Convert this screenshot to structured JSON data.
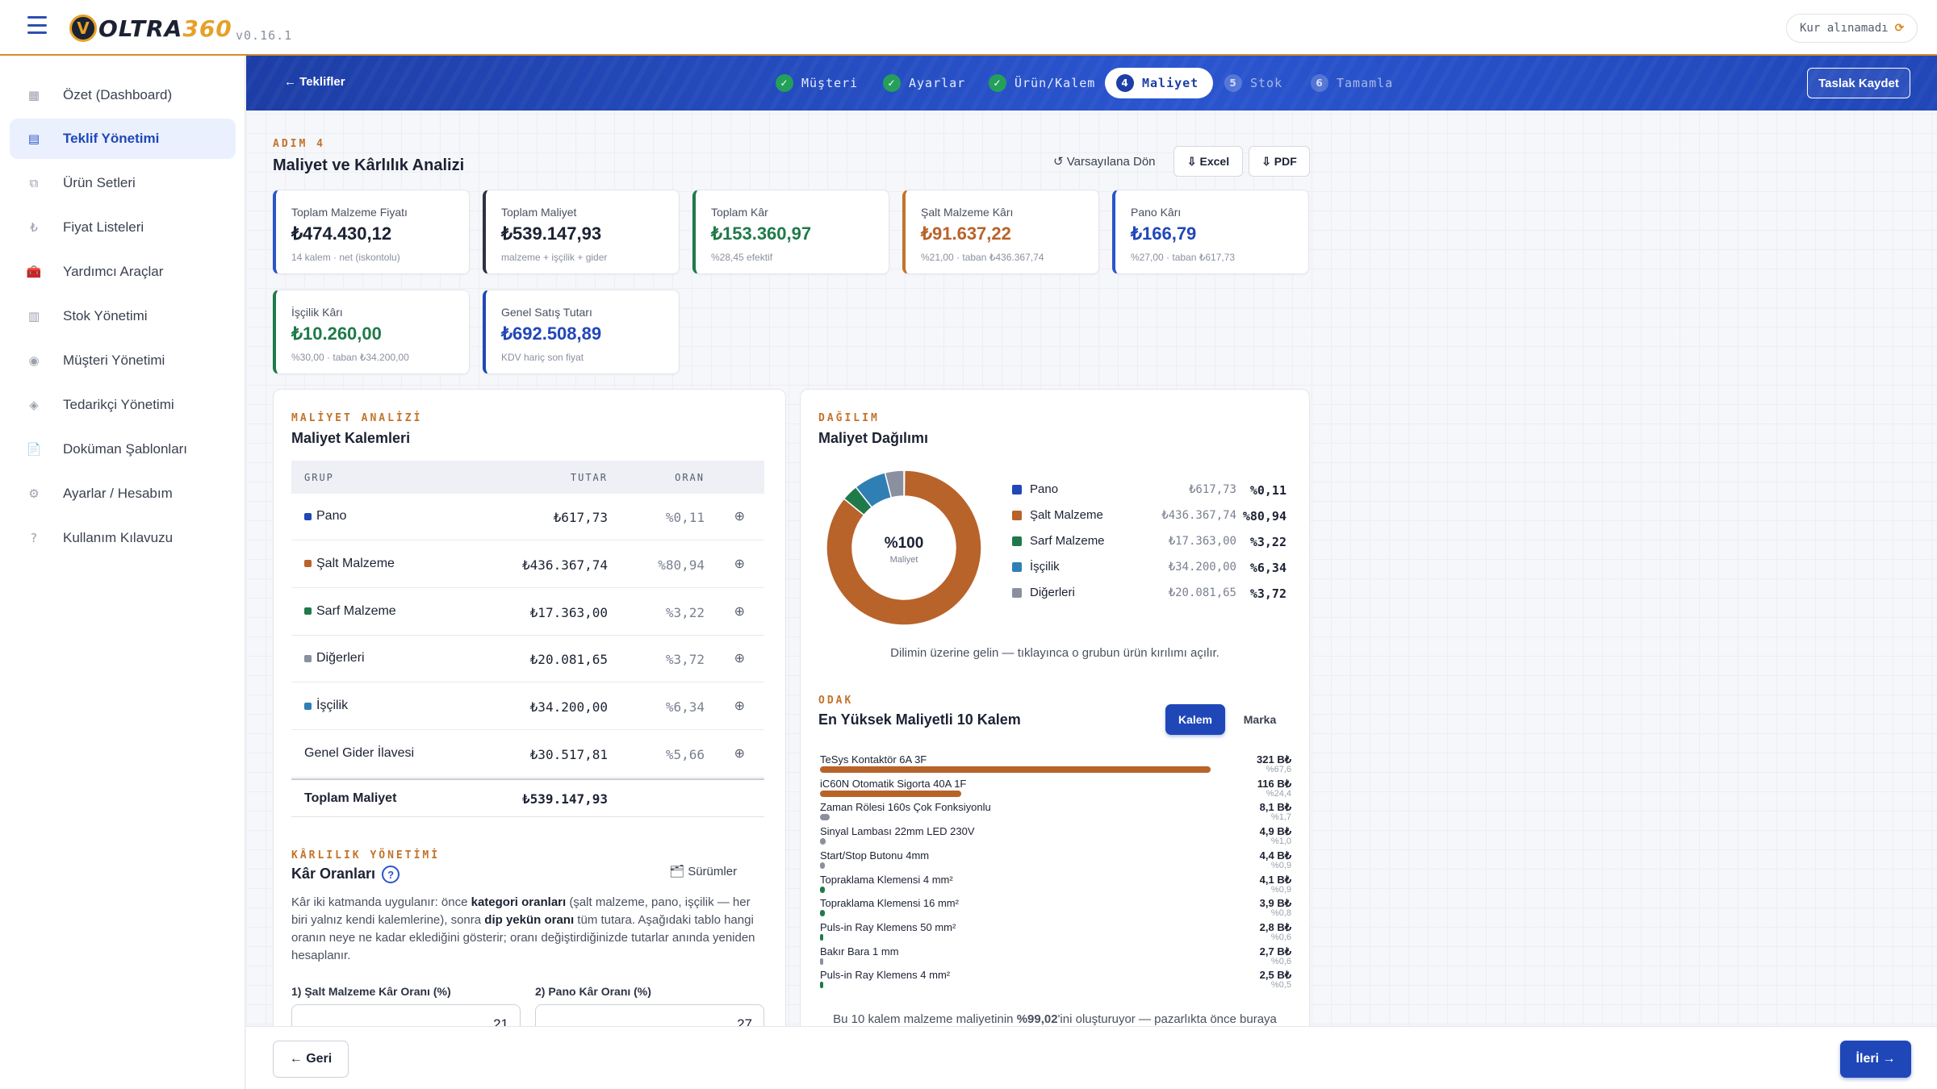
{
  "app": {
    "version": "v0.16.1",
    "logo_main": "OLTRA",
    "logo_accent": "360",
    "logo_badge": "V"
  },
  "header": {
    "rate_status": "Kur alınamadı",
    "rate_icon": "⟳"
  },
  "sidebar": {
    "items": [
      {
        "label": "Özet (Dashboard)",
        "icon": "▦"
      },
      {
        "label": "Teklif Yönetimi",
        "icon": "▤",
        "active": true
      },
      {
        "label": "Ürün Setleri",
        "icon": "⧉"
      },
      {
        "label": "Fiyat Listeleri",
        "icon": "₺"
      },
      {
        "label": "Yardımcı Araçlar",
        "icon": "🧰"
      },
      {
        "label": "Stok Yönetimi",
        "icon": "▥"
      },
      {
        "label": "Müşteri Yönetimi",
        "icon": "◉"
      },
      {
        "label": "Tedarikçi Yönetimi",
        "icon": "◈"
      },
      {
        "label": "Doküman Şablonları",
        "icon": "📄"
      },
      {
        "label": "Ayarlar / Hesabım",
        "icon": "⚙"
      },
      {
        "label": "Kullanım Kılavuzu",
        "icon": "?"
      }
    ]
  },
  "stepper": {
    "back_label": "← Teklifler",
    "steps": [
      {
        "num": "✓",
        "label": "Müşteri",
        "state": "done"
      },
      {
        "num": "✓",
        "label": "Ayarlar",
        "state": "done"
      },
      {
        "num": "✓",
        "label": "Ürün/Kalem",
        "state": "done"
      },
      {
        "num": "4",
        "label": "Maliyet",
        "state": "active"
      },
      {
        "num": "5",
        "label": "Stok",
        "state": "pending"
      },
      {
        "num": "6",
        "label": "Tamamla",
        "state": "pending"
      }
    ],
    "save_draft_label": "Taslak Kaydet"
  },
  "page": {
    "step_label": "ADIM 4",
    "title": "Maliyet ve Kârlılık Analizi",
    "reset_label": "↺ Varsayılana Dön",
    "excel_label": "⇩ Excel",
    "pdf_label": "⇩ PDF"
  },
  "kpis": [
    {
      "label": "Toplam Malzeme Fiyatı",
      "value": "₺474.430,12",
      "sub": "14 kalem · net (iskontolu)",
      "color": "#1c2233",
      "border": "#2c55c9"
    },
    {
      "label": "Toplam Maliyet",
      "value": "₺539.147,93",
      "sub": "malzeme + işçilik + gider",
      "color": "#1c2233",
      "border": "#2c3342"
    },
    {
      "label": "Toplam Kâr",
      "value": "₺153.360,97",
      "sub": "%28,45 efektif",
      "color": "#1f7a4a",
      "border": "#1f7a4a"
    },
    {
      "label": "Şalt Malzeme Kârı",
      "value": "₺91.637,22",
      "sub": "%21,00 · taban ₺436.367,74",
      "color": "#b8632a",
      "border": "#c4732a"
    },
    {
      "label": "Pano Kârı",
      "value": "₺166,79",
      "sub": "%27,00 · taban ₺617,73",
      "color": "#2147b8",
      "border": "#2c55c9"
    },
    {
      "label": "İşçilik Kârı",
      "value": "₺10.260,00",
      "sub": "%30,00 · taban ₺34.200,00",
      "color": "#1f7a4a",
      "border": "#1f7a4a"
    },
    {
      "label": "Genel Satış Tutarı",
      "value": "₺692.508,89",
      "sub": "KDV hariç son fiyat",
      "color": "#2147b8",
      "border": "#2147b8"
    }
  ],
  "cost_analysis": {
    "eyebrow": "MALİYET ANALİZİ",
    "title": "Maliyet Kalemleri",
    "col_group": "GRUP",
    "col_amount": "TUTAR",
    "col_ratio": "ORAN",
    "rows": [
      {
        "group": "Pano",
        "amount": "₺617,73",
        "ratio": "%0,11",
        "color": "#2147b8",
        "action": "⊕"
      },
      {
        "group": "Şalt Malzeme",
        "amount": "₺436.367,74",
        "ratio": "%80,94",
        "color": "#b8632a",
        "action": "⊕"
      },
      {
        "group": "Sarf Malzeme",
        "amount": "₺17.363,00",
        "ratio": "%3,22",
        "color": "#1f7a4a",
        "action": "⊕"
      },
      {
        "group": "Diğerleri",
        "amount": "₺20.081,65",
        "ratio": "%3,72",
        "color": "#8a90a0",
        "action": "⊕"
      },
      {
        "group": "İşçilik",
        "amount": "₺34.200,00",
        "ratio": "%6,34",
        "color": "#2f7fb5",
        "action": "⊕"
      },
      {
        "group": "Genel Gider İlavesi",
        "amount": "₺30.517,81",
        "ratio": "%5,66",
        "color": "",
        "action": "⊕"
      }
    ],
    "total_label": "Toplam Maliyet",
    "total_amount": "₺539.147,93"
  },
  "profit": {
    "eyebrow": "KÂRLILIK YÖNETİMİ",
    "title": "Kâr Oranları",
    "help": "?",
    "versions_label": "🗂 Sürümler",
    "desc_1": "Kâr iki katmanda uygulanır: önce ",
    "desc_b1": "kategori oranları",
    "desc_2": " (şalt malzeme, pano, işçilik — her biri yalnız kendi kalemlerine), sonra ",
    "desc_b2": "dip yekün oranı",
    "desc_3": " tüm tutara. Aşağıdaki tablo hangi oranın neye ne kadar eklediğini gösterir; oranı değiştirdiğinizde tutarlar anında yeniden hesaplanır.",
    "field1_label": "1) Şalt Malzeme Kâr Oranı (%)",
    "field1_value": "21",
    "field2_label": "2) Pano Kâr Oranı (%)",
    "field2_value": "27"
  },
  "distribution": {
    "eyebrow": "DAĞILIM",
    "title": "Maliyet Dağılımı",
    "center_value": "%100",
    "center_label": "Maliyet",
    "hint": "Dilimin üzerine gelin — tıklayınca o grubun ürün kırılımı açılır.",
    "legend": [
      {
        "name": "Pano",
        "amount": "₺617,73",
        "pct": "%0,11",
        "color": "#2147b8"
      },
      {
        "name": "Şalt Malzeme",
        "amount": "₺436.367,74",
        "pct": "%80,94",
        "color": "#b8632a"
      },
      {
        "name": "Sarf Malzeme",
        "amount": "₺17.363,00",
        "pct": "%3,22",
        "color": "#1f7a4a"
      },
      {
        "name": "İşçilik",
        "amount": "₺34.200,00",
        "pct": "%6,34",
        "color": "#2f7fb5"
      },
      {
        "name": "Diğerleri",
        "amount": "₺20.081,65",
        "pct": "%3,72",
        "color": "#8a90a0"
      }
    ]
  },
  "chart_data": {
    "type": "pie",
    "categories": [
      "Pano",
      "Şalt Malzeme",
      "Sarf Malzeme",
      "İşçilik",
      "Diğerleri"
    ],
    "values": [
      617.73,
      436367.74,
      17363.0,
      34200.0,
      20081.65
    ],
    "title": "Maliyet Dağılımı"
  },
  "focus": {
    "eyebrow": "ODAK",
    "title": "En Yüksek Maliyetli 10 Kalem",
    "tab_item": "Kalem",
    "tab_brand": "Marka",
    "items": [
      {
        "name": "TeSys Kontaktör 6A 3F",
        "value": "321 B₺",
        "pct": "%67,6",
        "fraction": 0.676,
        "color": "#b8632a"
      },
      {
        "name": "iC60N Otomatik Sigorta 40A 1F",
        "value": "116 B₺",
        "pct": "%24,4",
        "fraction": 0.244,
        "color": "#b8632a"
      },
      {
        "name": "Zaman Rölesi 160s Çok Fonksiyonlu",
        "value": "8,1 B₺",
        "pct": "%1,7",
        "fraction": 0.017,
        "color": "#8a90a0"
      },
      {
        "name": "Sinyal Lambası 22mm LED 230V",
        "value": "4,9 B₺",
        "pct": "%1,0",
        "fraction": 0.01,
        "color": "#8a90a0"
      },
      {
        "name": "Start/Stop Butonu 4mm",
        "value": "4,4 B₺",
        "pct": "%0,9",
        "fraction": 0.009,
        "color": "#8a90a0"
      },
      {
        "name": "Topraklama Klemensi 4 mm²",
        "value": "4,1 B₺",
        "pct": "%0,9",
        "fraction": 0.009,
        "color": "#1f7a4a"
      },
      {
        "name": "Topraklama Klemensi 16 mm²",
        "value": "3,9 B₺",
        "pct": "%0,8",
        "fraction": 0.008,
        "color": "#1f7a4a"
      },
      {
        "name": "Puls-in Ray Klemens 50 mm²",
        "value": "2,8 B₺",
        "pct": "%0,6",
        "fraction": 0.006,
        "color": "#1f7a4a"
      },
      {
        "name": "Bakır Bara 1 mm",
        "value": "2,7 B₺",
        "pct": "%0,6",
        "fraction": 0.006,
        "color": "#8a90a0"
      },
      {
        "name": "Puls-in Ray Klemens 4 mm²",
        "value": "2,5 B₺",
        "pct": "%0,5",
        "fraction": 0.005,
        "color": "#1f7a4a"
      }
    ],
    "foot_1": "Bu 10 kalem malzeme maliyetinin ",
    "foot_b": "%99,02",
    "foot_2": "'ini oluşturuyor — pazarlıkta önce buraya"
  },
  "footer": {
    "back_label": "← Geri",
    "next_label": "İleri →"
  }
}
